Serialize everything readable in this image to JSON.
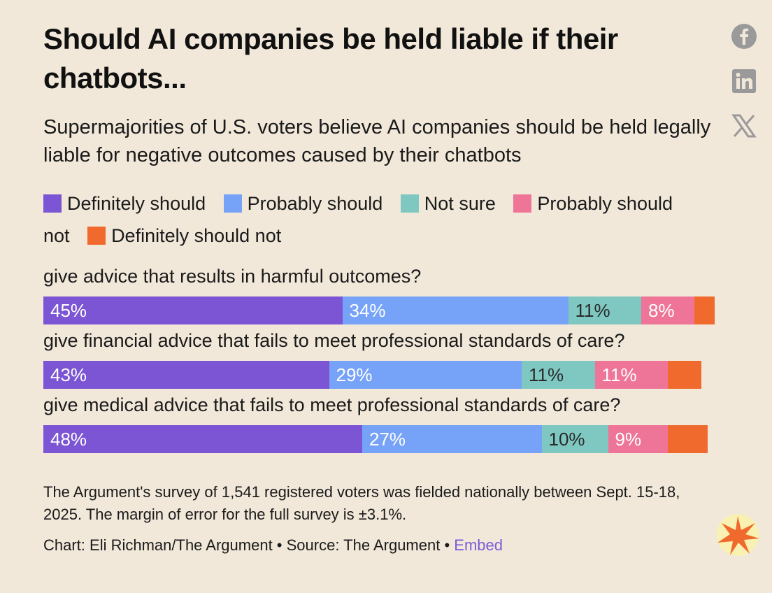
{
  "title": "Should AI companies be held liable if their chatbots...",
  "subtitle": "Supermajorities of U.S. voters believe AI companies should be held legally liable for negative outcomes caused by their chatbots",
  "social": [
    {
      "name": "facebook-icon",
      "label": "f"
    },
    {
      "name": "linkedin-icon",
      "label": "in"
    },
    {
      "name": "x-icon",
      "label": "𝕏"
    }
  ],
  "chart_data": {
    "type": "bar",
    "orientation": "horizontal-stacked",
    "categories": [
      "give advice that results in harmful outcomes?",
      "give financial advice that fails to meet professional standards of care?",
      "give medical advice that fails to meet professional standards of care?"
    ],
    "series": [
      {
        "name": "Definitely should",
        "color": "#7b55d4",
        "values": [
          45,
          43,
          48
        ],
        "labels": [
          "45%",
          "43%",
          "48%"
        ],
        "text_color": "#ffffff"
      },
      {
        "name": "Probably should",
        "color": "#76a3f7",
        "values": [
          34,
          29,
          27
        ],
        "labels": [
          "34%",
          "29%",
          "27%"
        ],
        "text_color": "#ffffff"
      },
      {
        "name": "Not sure",
        "color": "#7fc8c2",
        "values": [
          11,
          11,
          10
        ],
        "labels": [
          "11%",
          "11%",
          "10%"
        ],
        "text_color": "#2a2a2a"
      },
      {
        "name": "Probably should not",
        "color": "#ee7598",
        "values": [
          8,
          11,
          9
        ],
        "labels": [
          "8%",
          "11%",
          "9%"
        ],
        "text_color": "#ffffff"
      },
      {
        "name": "Definitely should not",
        "color": "#ef6a2c",
        "values": [
          3,
          5,
          6
        ],
        "labels": [
          "",
          "",
          ""
        ],
        "text_color": "#ffffff"
      }
    ],
    "xlim": [
      0,
      100
    ]
  },
  "note": "The Argument's survey of 1,541 registered voters was fielded nationally between Sept. 15-18, 2025. The margin of error for the full survey is ±3.1%.",
  "credit": {
    "text": "Chart: Eli Richman/The Argument • Source: The Argument • ",
    "link": "Embed"
  }
}
